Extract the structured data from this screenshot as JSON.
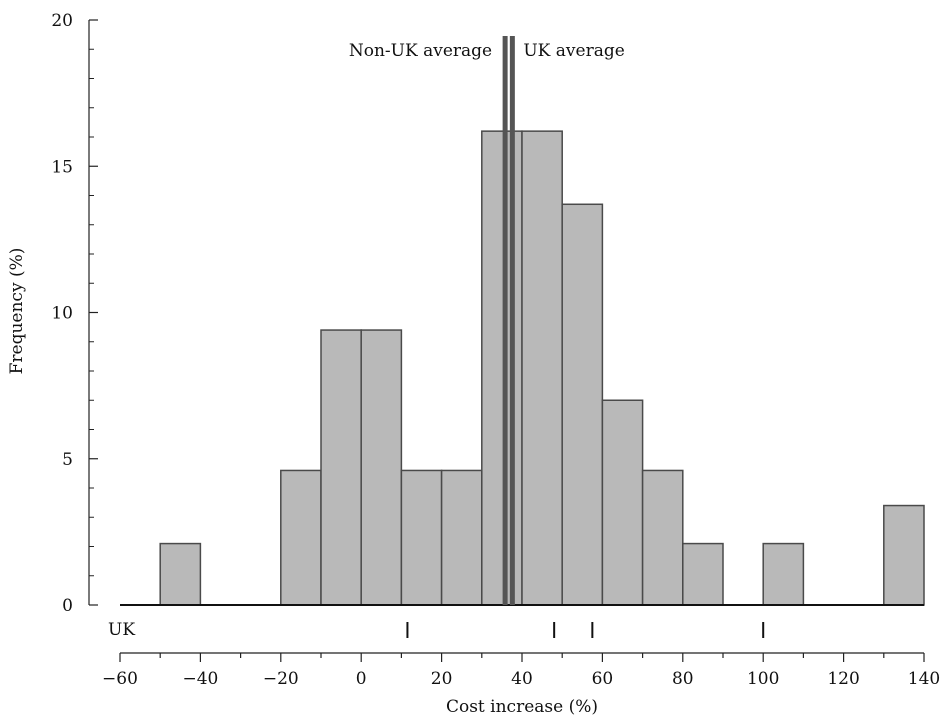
{
  "chart_data": {
    "type": "bar",
    "subtype": "histogram",
    "xlabel": "Cost increase (%)",
    "ylabel": "Frequency (%)",
    "xlim": [
      -60,
      140
    ],
    "ylim": [
      0,
      20
    ],
    "x_ticks": [
      -60,
      -40,
      -20,
      0,
      20,
      40,
      60,
      80,
      100,
      120,
      140
    ],
    "y_ticks": [
      0,
      5,
      10,
      15,
      20
    ],
    "bin_width": 10,
    "bins": [
      {
        "start": -50,
        "value": 2.1
      },
      {
        "start": -20,
        "value": 4.6
      },
      {
        "start": -10,
        "value": 9.4
      },
      {
        "start": 0,
        "value": 9.4
      },
      {
        "start": 10,
        "value": 4.6
      },
      {
        "start": 20,
        "value": 4.6
      },
      {
        "start": 30,
        "value": 16.2
      },
      {
        "start": 40,
        "value": 16.2
      },
      {
        "start": 50,
        "value": 13.7
      },
      {
        "start": 60,
        "value": 7.0
      },
      {
        "start": 70,
        "value": 4.6
      },
      {
        "start": 80,
        "value": 2.1
      },
      {
        "start": 100,
        "value": 2.1
      },
      {
        "start": 130,
        "value": 3.4
      }
    ],
    "reference_lines": [
      {
        "label": "Non-UK average",
        "x": 35.8
      },
      {
        "label": "UK average",
        "x": 37.6
      }
    ],
    "rug": {
      "label": "UK",
      "values": [
        11.5,
        48,
        57.5,
        100
      ]
    },
    "colors": {
      "bar_fill": "#b9b9b9",
      "bar_stroke": "#4a4a4a",
      "ref_line": "#555555",
      "axis": "#222222"
    }
  }
}
